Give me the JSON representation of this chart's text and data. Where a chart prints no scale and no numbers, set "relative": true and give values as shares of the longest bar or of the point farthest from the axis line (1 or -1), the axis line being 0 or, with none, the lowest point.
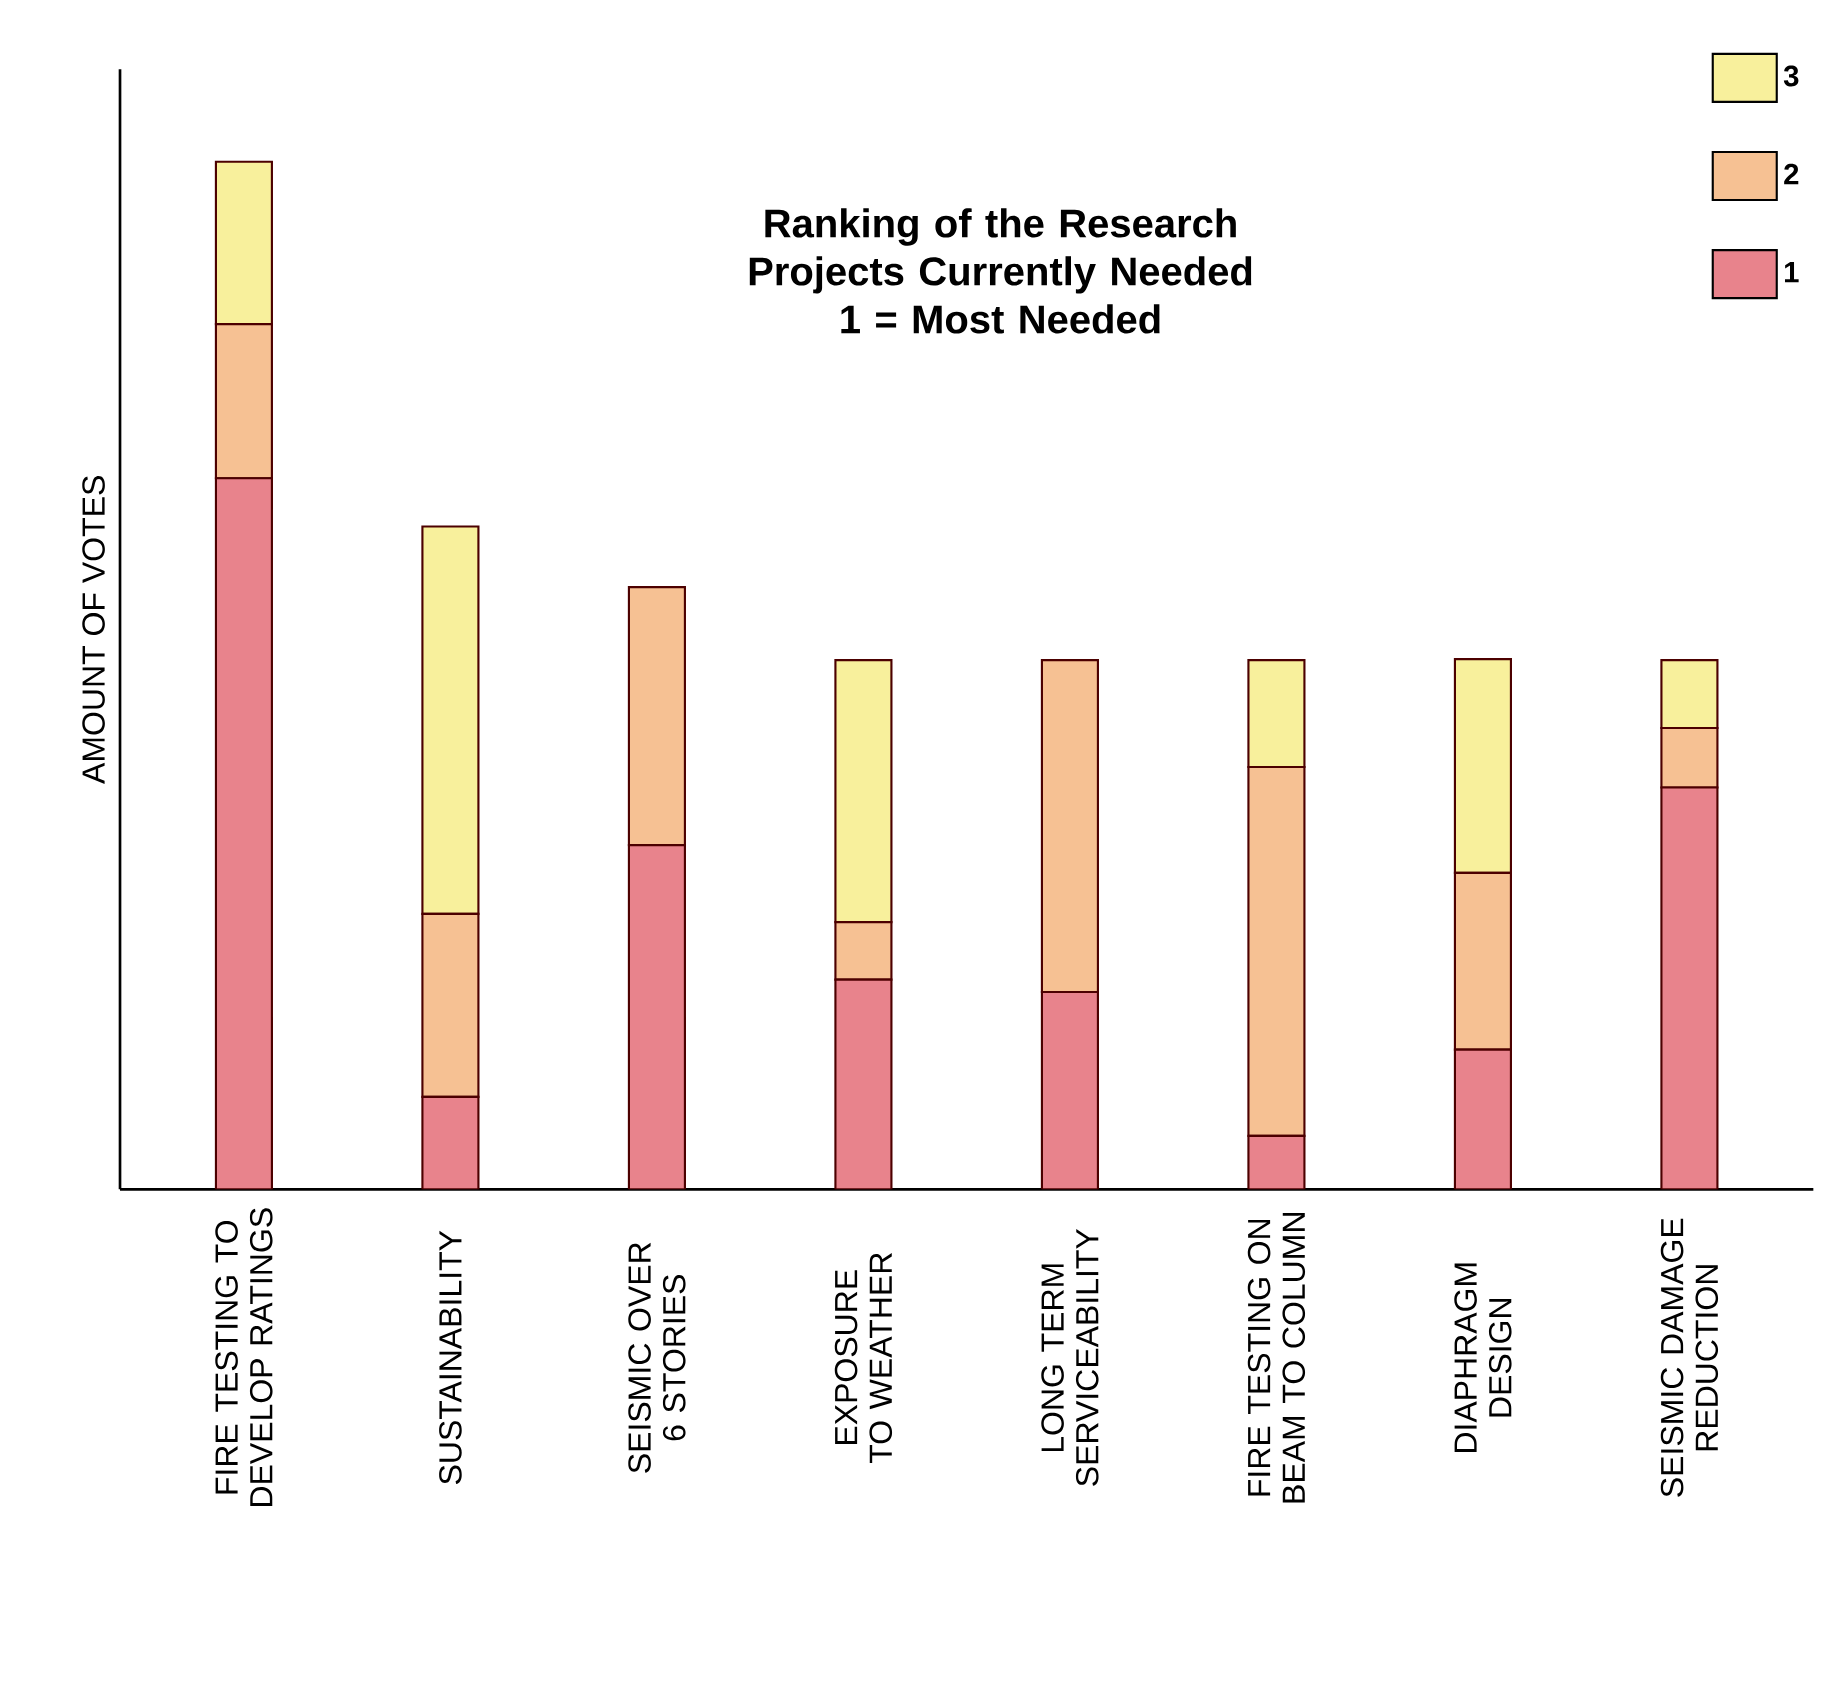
{
  "chart_data": {
    "type": "bar",
    "title": "Ranking of the Research Projects Currently Needed",
    "subtitle": "1 = Most Needed",
    "ylabel": "AMOUNT OF VOTES",
    "categories": [
      "FIRE TESTING TO DEVELOP RATINGS",
      "SUSTAINABILITY",
      "SEISMIC OVER 6 STORIES",
      "EXPOSURE TO WEATHER",
      "LONG TERM SERVICEABILITY",
      "FIRE TESTING ON BEAM TO COLUMN",
      "DIAPHRAGM DESIGN",
      "SEISMIC DAMAGE REDUCTION"
    ],
    "stacked": true,
    "relative": true,
    "legend": "top right",
    "series": [
      {
        "name": "1",
        "color": "#e8838c",
        "values": [
          0.692,
          0.09,
          0.335,
          0.204,
          0.192,
          0.052,
          0.136,
          0.391
        ]
      },
      {
        "name": "2",
        "color": "#f6c193",
        "values": [
          0.15,
          0.178,
          0.251,
          0.056,
          0.323,
          0.359,
          0.172,
          0.058
        ]
      },
      {
        "name": "3",
        "color": "#f8f09c",
        "values": [
          0.158,
          0.377,
          0,
          0.255,
          0,
          0.104,
          0.208,
          0.066
        ]
      }
    ]
  }
}
